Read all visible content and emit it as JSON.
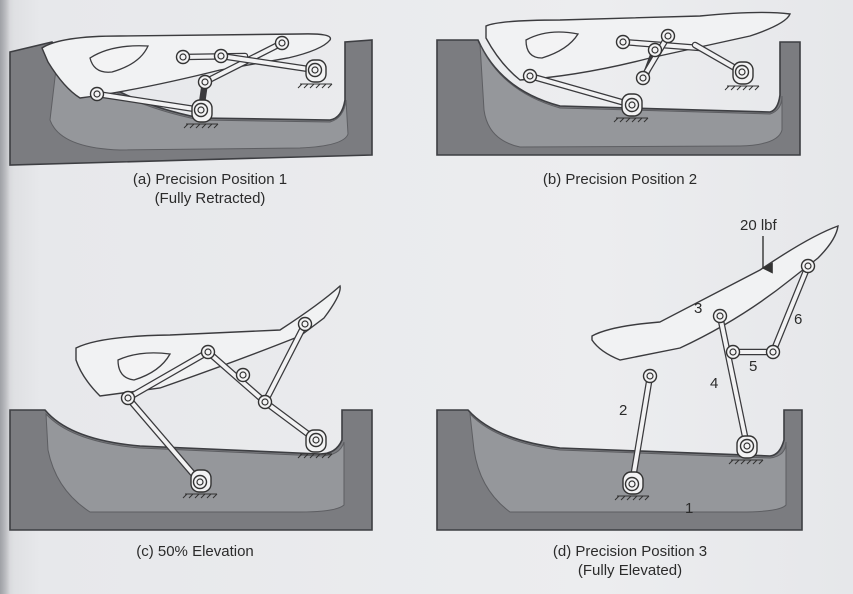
{
  "captions": {
    "a": {
      "line1": "(a) Precision Position 1",
      "line2": "(Fully Retracted)"
    },
    "b": {
      "line1": "(b) Precision Position 2",
      "line2": ""
    },
    "c": {
      "line1": "(c) 50% Elevation",
      "line2": ""
    },
    "d": {
      "line1": "(d) Precision Position 3",
      "line2": "(Fully Elevated)"
    }
  },
  "force_label": "20 lbf",
  "link_labels": {
    "l1": "1",
    "l2": "2",
    "l3": "3",
    "l4": "4",
    "l5": "5",
    "l6": "6"
  },
  "colors": {
    "tub": "#7b7c80",
    "tub_inner": "#a7a9ad",
    "seat": "#f1f2f3",
    "background": "#e9eaec"
  }
}
